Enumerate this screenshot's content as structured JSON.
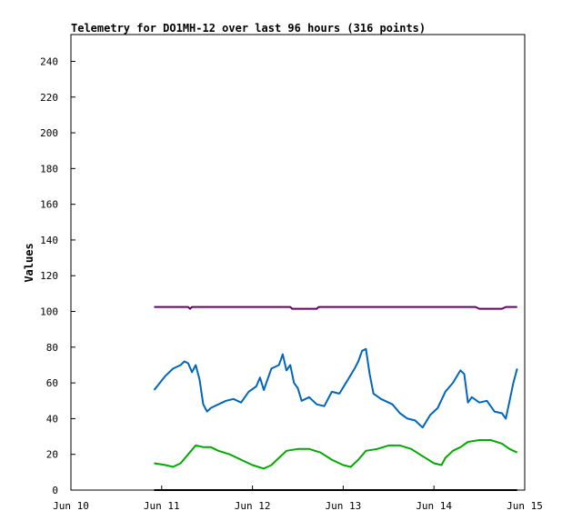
{
  "chart_data": {
    "type": "line",
    "title": "Telemetry for DO1MH-12 over last 96 hours (316 points)",
    "xlabel": "",
    "ylabel": "Values",
    "xlim": [
      "2022-06-10T00:00",
      "2022-06-15T00:00"
    ],
    "ylim": [
      0,
      255
    ],
    "y_ticks": [
      0,
      20,
      40,
      60,
      80,
      100,
      120,
      140,
      160,
      180,
      200,
      220,
      240
    ],
    "x_ticks": [
      {
        "label": "Jun 10",
        "t": "2022-06-10T00:00"
      },
      {
        "label": "Jun 11",
        "t": "2022-06-11T00:00"
      },
      {
        "label": "Jun 12",
        "t": "2022-06-12T00:00"
      },
      {
        "label": "Jun 13",
        "t": "2022-06-13T00:00"
      },
      {
        "label": "Jun 14",
        "t": "2022-06-14T00:00"
      },
      {
        "label": "Jun 15",
        "t": "2022-06-15T00:00"
      }
    ],
    "grid": false,
    "legend": "none",
    "series": [
      {
        "color": "#660066",
        "points": [
          [
            "2022-06-10T22:00",
            102.5
          ],
          [
            "2022-06-11T07:00",
            102.5
          ],
          [
            "2022-06-11T07:30",
            101.5
          ],
          [
            "2022-06-11T08:00",
            102.5
          ],
          [
            "2022-06-12T10:00",
            102.5
          ],
          [
            "2022-06-12T10:30",
            101.5
          ],
          [
            "2022-06-12T17:00",
            101.5
          ],
          [
            "2022-06-12T17:30",
            102.5
          ],
          [
            "2022-06-14T11:00",
            102.5
          ],
          [
            "2022-06-14T12:00",
            101.5
          ],
          [
            "2022-06-14T18:00",
            101.5
          ],
          [
            "2022-06-14T19:00",
            102.5
          ],
          [
            "2022-06-14T22:00",
            102.5
          ]
        ]
      },
      {
        "color": "#0066bb",
        "points": [
          [
            "2022-06-10T22:00",
            56
          ],
          [
            "2022-06-11T01:00",
            64
          ],
          [
            "2022-06-11T03:00",
            68
          ],
          [
            "2022-06-11T05:00",
            70
          ],
          [
            "2022-06-11T06:00",
            72
          ],
          [
            "2022-06-11T07:00",
            71
          ],
          [
            "2022-06-11T08:00",
            66
          ],
          [
            "2022-06-11T09:00",
            70
          ],
          [
            "2022-06-11T10:00",
            62
          ],
          [
            "2022-06-11T11:00",
            48
          ],
          [
            "2022-06-11T12:00",
            44
          ],
          [
            "2022-06-11T13:00",
            46
          ],
          [
            "2022-06-11T15:00",
            48
          ],
          [
            "2022-06-11T17:00",
            50
          ],
          [
            "2022-06-11T19:00",
            51
          ],
          [
            "2022-06-11T21:00",
            49
          ],
          [
            "2022-06-11T23:00",
            55
          ],
          [
            "2022-06-12T01:00",
            58
          ],
          [
            "2022-06-12T02:00",
            63
          ],
          [
            "2022-06-12T03:00",
            56
          ],
          [
            "2022-06-12T05:00",
            68
          ],
          [
            "2022-06-12T07:00",
            70
          ],
          [
            "2022-06-12T08:00",
            76
          ],
          [
            "2022-06-12T09:00",
            67
          ],
          [
            "2022-06-12T10:00",
            70
          ],
          [
            "2022-06-12T11:00",
            60
          ],
          [
            "2022-06-12T12:00",
            57
          ],
          [
            "2022-06-12T13:00",
            50
          ],
          [
            "2022-06-12T15:00",
            52
          ],
          [
            "2022-06-12T17:00",
            48
          ],
          [
            "2022-06-12T19:00",
            47
          ],
          [
            "2022-06-12T21:00",
            55
          ],
          [
            "2022-06-12T23:00",
            54
          ],
          [
            "2022-06-13T01:00",
            61
          ],
          [
            "2022-06-13T03:00",
            68
          ],
          [
            "2022-06-13T04:00",
            72
          ],
          [
            "2022-06-13T05:00",
            78
          ],
          [
            "2022-06-13T06:00",
            79
          ],
          [
            "2022-06-13T07:00",
            65
          ],
          [
            "2022-06-13T08:00",
            54
          ],
          [
            "2022-06-13T10:00",
            51
          ],
          [
            "2022-06-13T13:00",
            48
          ],
          [
            "2022-06-13T15:00",
            43
          ],
          [
            "2022-06-13T17:00",
            40
          ],
          [
            "2022-06-13T19:00",
            39
          ],
          [
            "2022-06-13T21:00",
            35
          ],
          [
            "2022-06-13T23:00",
            42
          ],
          [
            "2022-06-14T01:00",
            46
          ],
          [
            "2022-06-14T03:00",
            55
          ],
          [
            "2022-06-14T05:00",
            60
          ],
          [
            "2022-06-14T07:00",
            67
          ],
          [
            "2022-06-14T08:00",
            65
          ],
          [
            "2022-06-14T09:00",
            49
          ],
          [
            "2022-06-14T10:00",
            52
          ],
          [
            "2022-06-14T12:00",
            49
          ],
          [
            "2022-06-14T14:00",
            50
          ],
          [
            "2022-06-14T16:00",
            44
          ],
          [
            "2022-06-14T18:00",
            43
          ],
          [
            "2022-06-14T19:00",
            40
          ],
          [
            "2022-06-14T20:00",
            50
          ],
          [
            "2022-06-14T21:00",
            60
          ],
          [
            "2022-06-14T22:00",
            68
          ]
        ]
      },
      {
        "color": "#00aa00",
        "points": [
          [
            "2022-06-10T22:00",
            15
          ],
          [
            "2022-06-11T01:00",
            14
          ],
          [
            "2022-06-11T03:00",
            13
          ],
          [
            "2022-06-11T05:00",
            15
          ],
          [
            "2022-06-11T07:00",
            20
          ],
          [
            "2022-06-11T09:00",
            25
          ],
          [
            "2022-06-11T11:00",
            24
          ],
          [
            "2022-06-11T13:00",
            24
          ],
          [
            "2022-06-11T15:00",
            22
          ],
          [
            "2022-06-11T18:00",
            20
          ],
          [
            "2022-06-11T21:00",
            17
          ],
          [
            "2022-06-12T00:00",
            14
          ],
          [
            "2022-06-12T03:00",
            12
          ],
          [
            "2022-06-12T05:00",
            14
          ],
          [
            "2022-06-12T07:00",
            18
          ],
          [
            "2022-06-12T09:00",
            22
          ],
          [
            "2022-06-12T12:00",
            23
          ],
          [
            "2022-06-12T15:00",
            23
          ],
          [
            "2022-06-12T18:00",
            21
          ],
          [
            "2022-06-12T21:00",
            17
          ],
          [
            "2022-06-13T00:00",
            14
          ],
          [
            "2022-06-13T02:00",
            13
          ],
          [
            "2022-06-13T04:00",
            17
          ],
          [
            "2022-06-13T06:00",
            22
          ],
          [
            "2022-06-13T09:00",
            23
          ],
          [
            "2022-06-13T12:00",
            25
          ],
          [
            "2022-06-13T15:00",
            25
          ],
          [
            "2022-06-13T18:00",
            23
          ],
          [
            "2022-06-13T21:00",
            19
          ],
          [
            "2022-06-14T00:00",
            15
          ],
          [
            "2022-06-14T02:00",
            14
          ],
          [
            "2022-06-14T03:00",
            18
          ],
          [
            "2022-06-14T05:00",
            22
          ],
          [
            "2022-06-14T07:00",
            24
          ],
          [
            "2022-06-14T09:00",
            27
          ],
          [
            "2022-06-14T12:00",
            28
          ],
          [
            "2022-06-14T15:00",
            28
          ],
          [
            "2022-06-14T18:00",
            26
          ],
          [
            "2022-06-14T20:00",
            23
          ],
          [
            "2022-06-14T22:00",
            21
          ]
        ]
      },
      {
        "color": "#000000",
        "points": [
          [
            "2022-06-10T22:00",
            0
          ],
          [
            "2022-06-14T22:00",
            0
          ]
        ]
      }
    ]
  }
}
